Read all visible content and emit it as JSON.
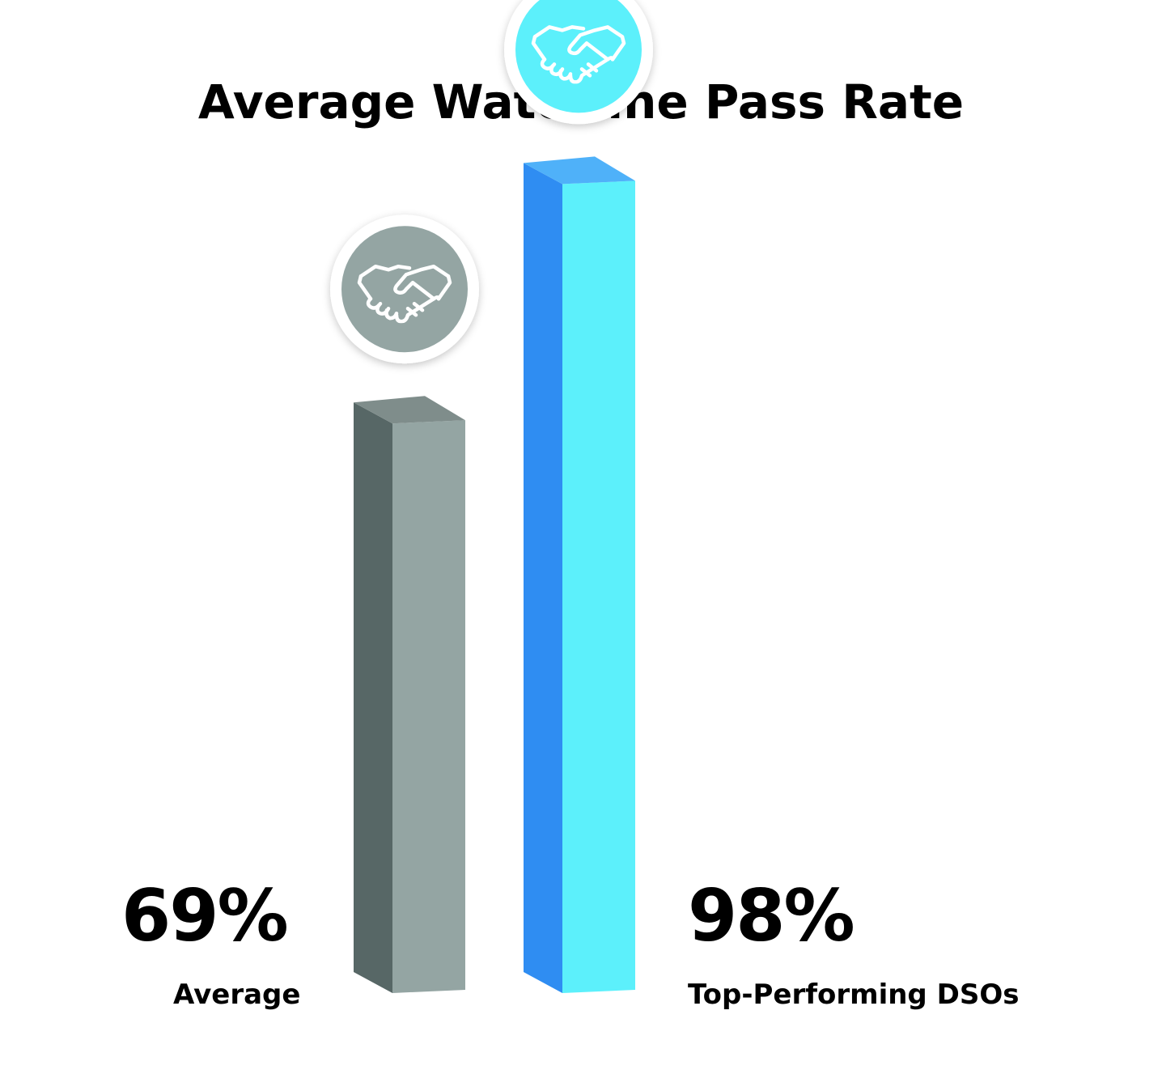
{
  "title": "Average Waterline Pass Rate",
  "chart_data": {
    "type": "bar",
    "title": "Average Waterline Pass Rate",
    "categories": [
      "Average",
      "Top-Performing DSOs"
    ],
    "values": [
      69,
      98
    ],
    "value_labels": [
      "69%",
      "98%"
    ],
    "unit": "%",
    "ylim": [
      0,
      100
    ],
    "grid": false,
    "legend": "none",
    "style": "3d-bar-with-icon"
  },
  "colors": {
    "average_front": "#94a5a3",
    "average_side": "#576766",
    "average_top": "#7f8d8b",
    "top_front": "#5cf0fb",
    "top_side": "#2f8df2",
    "top_top": "#4fb1f9",
    "icon_average": "#94a5a3",
    "icon_top": "#5cf0fb"
  },
  "icons": [
    "handshake-icon",
    "handshake-icon"
  ]
}
